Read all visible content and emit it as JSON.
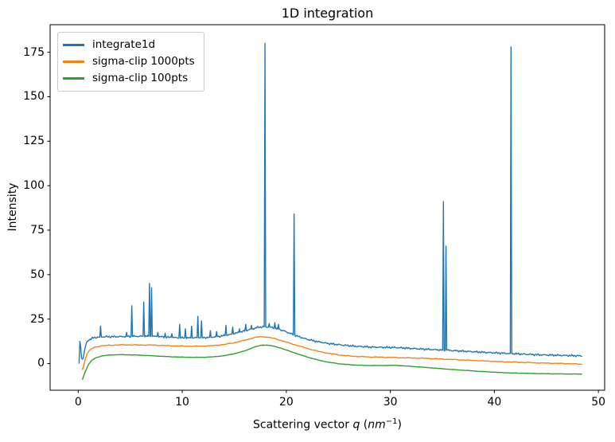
{
  "chart_data": {
    "type": "line",
    "title": "1D integration",
    "xlabel": "Scattering vector q (nm⁻¹)",
    "xlabel_parts": {
      "prefix": "Scattering vector ",
      "q": "q",
      "open": " (",
      "unit": "nm",
      "sup": "−1",
      "close": ")"
    },
    "ylabel": "Intensity",
    "xlim": [
      -2.7,
      50.6
    ],
    "ylim": [
      -15,
      190.5
    ],
    "x_ticks": [
      0,
      10,
      20,
      30,
      40,
      50
    ],
    "y_ticks": [
      0,
      25,
      50,
      75,
      100,
      125,
      150,
      175
    ],
    "grid": false,
    "legend_position": "upper-left",
    "series": [
      {
        "name": "integrate1d",
        "color": "#1f77b4",
        "noise_amplitude": 0.38,
        "baseline": [
          [
            0.08,
            0
          ],
          [
            0.12,
            12
          ],
          [
            0.2,
            12.5
          ],
          [
            0.3,
            3.5
          ],
          [
            0.45,
            2.2
          ],
          [
            0.6,
            7
          ],
          [
            0.75,
            11
          ],
          [
            0.95,
            13
          ],
          [
            1.3,
            14.2
          ],
          [
            1.8,
            14.8
          ],
          [
            2.6,
            15.1
          ],
          [
            3.6,
            15.1
          ],
          [
            4.6,
            15.2
          ],
          [
            5.6,
            15.3
          ],
          [
            6.6,
            15.4
          ],
          [
            7.6,
            15.2
          ],
          [
            8.6,
            14.8
          ],
          [
            9.6,
            14.5
          ],
          [
            10.6,
            14.4
          ],
          [
            11.6,
            14.5
          ],
          [
            12.6,
            14.7
          ],
          [
            13.6,
            15.3
          ],
          [
            14.6,
            16.3
          ],
          [
            15.6,
            17.7
          ],
          [
            16.6,
            19.3
          ],
          [
            17.3,
            20.4
          ],
          [
            17.9,
            20.7
          ],
          [
            18.5,
            20.4
          ],
          [
            19.1,
            19.6
          ],
          [
            19.7,
            18.5
          ],
          [
            20.4,
            16.9
          ],
          [
            21.1,
            15.3
          ],
          [
            21.9,
            13.8
          ],
          [
            22.9,
            12.4
          ],
          [
            24,
            11.3
          ],
          [
            25.2,
            10.5
          ],
          [
            26.5,
            9.8
          ],
          [
            28,
            9.3
          ],
          [
            29.3,
            9.1
          ],
          [
            30.5,
            9.0
          ],
          [
            31.8,
            8.6
          ],
          [
            33.2,
            8.1
          ],
          [
            34.6,
            7.7
          ],
          [
            36,
            7.3
          ],
          [
            37.5,
            6.8
          ],
          [
            39,
            6.3
          ],
          [
            40.5,
            5.9
          ],
          [
            42,
            5.5
          ],
          [
            43.5,
            5.1
          ],
          [
            45,
            4.8
          ],
          [
            46.5,
            4.6
          ],
          [
            47.8,
            4.4
          ],
          [
            48.4,
            4.3
          ]
        ],
        "spikes": [
          [
            2.15,
            21
          ],
          [
            4.65,
            17.5
          ],
          [
            5.15,
            32.5
          ],
          [
            6.3,
            34.5
          ],
          [
            6.85,
            45
          ],
          [
            7.05,
            42.5
          ],
          [
            7.65,
            17.5
          ],
          [
            8.35,
            17
          ],
          [
            9.0,
            16.8
          ],
          [
            9.75,
            22
          ],
          [
            10.3,
            19.5
          ],
          [
            10.9,
            21
          ],
          [
            11.5,
            26.5
          ],
          [
            11.85,
            24
          ],
          [
            12.7,
            18.5
          ],
          [
            13.3,
            18
          ],
          [
            14.2,
            21.5
          ],
          [
            14.85,
            20.5
          ],
          [
            15.5,
            19.5
          ],
          [
            16.1,
            22
          ],
          [
            16.65,
            21.5
          ],
          [
            17.95,
            180
          ],
          [
            18.35,
            22.5
          ],
          [
            18.9,
            23
          ],
          [
            19.25,
            22
          ],
          [
            20.75,
            84
          ],
          [
            23.3,
            12
          ],
          [
            35.1,
            91
          ],
          [
            35.35,
            66
          ],
          [
            41.6,
            178
          ]
        ]
      },
      {
        "name": "sigma-clip 1000pts",
        "color": "#ff7f0e",
        "noise_amplitude": 0.16,
        "baseline": [
          [
            0.4,
            -3.5
          ],
          [
            0.55,
            -0.5
          ],
          [
            0.7,
            3
          ],
          [
            0.9,
            6
          ],
          [
            1.2,
            8
          ],
          [
            1.6,
            9.2
          ],
          [
            2.2,
            9.9
          ],
          [
            3,
            10.3
          ],
          [
            4,
            10.5
          ],
          [
            5,
            10.5
          ],
          [
            6,
            10.4
          ],
          [
            7,
            10.4
          ],
          [
            8,
            10.2
          ],
          [
            9,
            10
          ],
          [
            10,
            9.8
          ],
          [
            11,
            9.7
          ],
          [
            12,
            9.8
          ],
          [
            13,
            10.1
          ],
          [
            14,
            10.7
          ],
          [
            15,
            11.7
          ],
          [
            16,
            13.1
          ],
          [
            17,
            14.7
          ],
          [
            17.5,
            15.1
          ],
          [
            18,
            15
          ],
          [
            18.7,
            14.3
          ],
          [
            19.5,
            13
          ],
          [
            20.3,
            11.5
          ],
          [
            21.2,
            9.9
          ],
          [
            22.2,
            8.2
          ],
          [
            23.2,
            6.7
          ],
          [
            24.2,
            5.6
          ],
          [
            25.3,
            4.7
          ],
          [
            26.5,
            4.1
          ],
          [
            28,
            3.7
          ],
          [
            29.5,
            3.5
          ],
          [
            31,
            3.3
          ],
          [
            32.5,
            3.1
          ],
          [
            34,
            2.8
          ],
          [
            35.5,
            2.4
          ],
          [
            37,
            2
          ],
          [
            38.5,
            1.6
          ],
          [
            40,
            1.2
          ],
          [
            41.5,
            0.9
          ],
          [
            43,
            0.6
          ],
          [
            44.5,
            0.3
          ],
          [
            46,
            0.1
          ],
          [
            47.3,
            -0.1
          ],
          [
            48.4,
            -0.4
          ]
        ],
        "spikes": []
      },
      {
        "name": "sigma-clip 100pts",
        "color": "#2ca02c",
        "noise_amplitude": 0.06,
        "baseline": [
          [
            0.4,
            -9
          ],
          [
            0.55,
            -6.5
          ],
          [
            0.75,
            -3.5
          ],
          [
            1,
            -0.5
          ],
          [
            1.3,
            1.8
          ],
          [
            1.7,
            3.3
          ],
          [
            2.3,
            4.3
          ],
          [
            3,
            4.8
          ],
          [
            4,
            5
          ],
          [
            5,
            4.9
          ],
          [
            6,
            4.7
          ],
          [
            7,
            4.4
          ],
          [
            8,
            4.1
          ],
          [
            9,
            3.8
          ],
          [
            10,
            3.6
          ],
          [
            11,
            3.5
          ],
          [
            12,
            3.5
          ],
          [
            13,
            3.8
          ],
          [
            14,
            4.4
          ],
          [
            15,
            5.5
          ],
          [
            16,
            7.1
          ],
          [
            17,
            9.4
          ],
          [
            17.6,
            10.3
          ],
          [
            18.1,
            10.4
          ],
          [
            18.7,
            9.9
          ],
          [
            19.4,
            8.8
          ],
          [
            20.2,
            7.2
          ],
          [
            21.1,
            5.4
          ],
          [
            22.1,
            3.5
          ],
          [
            23.1,
            1.9
          ],
          [
            24.1,
            0.7
          ],
          [
            25.2,
            -0.2
          ],
          [
            26.4,
            -0.8
          ],
          [
            27.8,
            -1.1
          ],
          [
            29.2,
            -1.1
          ],
          [
            30.3,
            -1.0
          ],
          [
            31.4,
            -1.3
          ],
          [
            32.7,
            -1.9
          ],
          [
            34.1,
            -2.5
          ],
          [
            35.6,
            -3.2
          ],
          [
            37.1,
            -3.8
          ],
          [
            38.6,
            -4.4
          ],
          [
            40.1,
            -4.9
          ],
          [
            41.6,
            -5.3
          ],
          [
            43.1,
            -5.5
          ],
          [
            44.6,
            -5.7
          ],
          [
            46.1,
            -5.8
          ],
          [
            47.4,
            -5.9
          ],
          [
            48.4,
            -5.9
          ]
        ],
        "spikes": []
      }
    ]
  }
}
